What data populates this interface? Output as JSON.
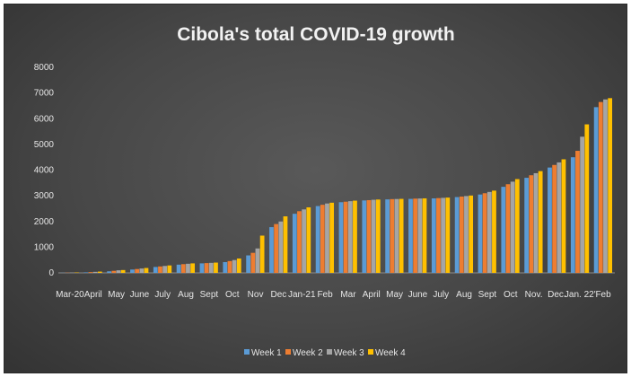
{
  "chart_data": {
    "type": "bar",
    "title": "Cibola's total COVID-19 growth",
    "xlabel": "",
    "ylabel": "",
    "ylim": [
      0,
      8000
    ],
    "yticks": [
      0,
      1000,
      2000,
      3000,
      4000,
      5000,
      6000,
      7000,
      8000
    ],
    "grid": false,
    "legend_position": "bottom",
    "categories": [
      "Mar-20",
      "April",
      "May",
      "June",
      "July",
      "Aug",
      "Sept",
      "Oct",
      "Nov",
      "Dec",
      "Jan-21",
      "Feb",
      "Mar",
      "April",
      "May",
      "June",
      "July",
      "Aug",
      "Sept",
      "Oct",
      "Nov.",
      "Dec.",
      "Jan. 22'",
      "Feb"
    ],
    "series": [
      {
        "name": "Week 1",
        "color": "#5b9bd5",
        "values": [
          5,
          20,
          60,
          130,
          230,
          320,
          370,
          420,
          680,
          1780,
          2300,
          2600,
          2750,
          2820,
          2860,
          2880,
          2900,
          2950,
          3050,
          3350,
          3700,
          4100,
          4500,
          6450
        ]
      },
      {
        "name": "Week 2",
        "color": "#ed7d31",
        "values": [
          8,
          30,
          80,
          150,
          250,
          340,
          380,
          460,
          780,
          1900,
          2400,
          2650,
          2770,
          2830,
          2870,
          2890,
          2910,
          2970,
          3100,
          3450,
          3800,
          4200,
          4750,
          6650
        ]
      },
      {
        "name": "Week 3",
        "color": "#a5a5a5",
        "values": [
          12,
          40,
          100,
          170,
          270,
          355,
          390,
          500,
          950,
          2000,
          2470,
          2700,
          2790,
          2845,
          2875,
          2895,
          2920,
          2990,
          3150,
          3550,
          3880,
          4300,
          5300,
          6750
        ]
      },
      {
        "name": "Week 4",
        "color": "#ffc000",
        "values": [
          15,
          50,
          110,
          190,
          290,
          370,
          400,
          560,
          1450,
          2200,
          2550,
          2730,
          2810,
          2855,
          2880,
          2900,
          2930,
          3010,
          3200,
          3650,
          3960,
          4420,
          5780,
          6800
        ]
      }
    ]
  }
}
